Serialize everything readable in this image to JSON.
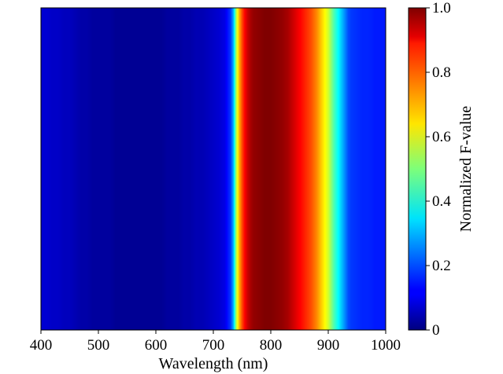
{
  "chart_data": {
    "type": "heatmap",
    "title": "",
    "xlabel": "Wavelength (nm)",
    "ylabel": "",
    "xlim": [
      400,
      1000
    ],
    "x_ticks": [
      400,
      500,
      600,
      700,
      800,
      900,
      1000
    ],
    "colorbar": {
      "label": "Normalized F-value",
      "range": [
        0,
        1
      ],
      "ticks": [
        {
          "value": 0,
          "label": "0"
        },
        {
          "value": 0.2,
          "label": "0.2"
        },
        {
          "value": 0.4,
          "label": "0.4"
        },
        {
          "value": 0.6,
          "label": "0.6"
        },
        {
          "value": 0.8,
          "label": "0.8"
        },
        {
          "value": 1.0,
          "label": "1.0"
        }
      ],
      "colormap": "jet"
    },
    "grid": false,
    "wavelength": [
      400,
      410,
      420,
      430,
      440,
      450,
      460,
      470,
      480,
      490,
      500,
      510,
      520,
      530,
      540,
      550,
      560,
      570,
      580,
      590,
      600,
      610,
      620,
      630,
      640,
      650,
      660,
      670,
      680,
      690,
      700,
      710,
      720,
      730,
      735,
      740,
      745,
      750,
      755,
      760,
      765,
      770,
      780,
      790,
      800,
      810,
      820,
      830,
      840,
      850,
      860,
      870,
      880,
      890,
      900,
      910,
      920,
      930,
      935,
      940,
      950,
      960,
      970,
      980,
      990,
      1000
    ],
    "f_value": [
      0.08,
      0.08,
      0.07,
      0.07,
      0.06,
      0.06,
      0.05,
      0.04,
      0.04,
      0.03,
      0.03,
      0.03,
      0.03,
      0.02,
      0.02,
      0.02,
      0.02,
      0.02,
      0.02,
      0.02,
      0.02,
      0.02,
      0.03,
      0.03,
      0.03,
      0.04,
      0.04,
      0.05,
      0.05,
      0.06,
      0.07,
      0.08,
      0.1,
      0.18,
      0.3,
      0.55,
      0.7,
      0.8,
      0.88,
      0.93,
      0.96,
      0.98,
      0.99,
      1.0,
      1.0,
      0.99,
      0.98,
      0.96,
      0.92,
      0.88,
      0.84,
      0.8,
      0.74,
      0.66,
      0.58,
      0.45,
      0.35,
      0.25,
      0.2,
      0.18,
      0.17,
      0.16,
      0.16,
      0.15,
      0.15,
      0.15
    ]
  }
}
